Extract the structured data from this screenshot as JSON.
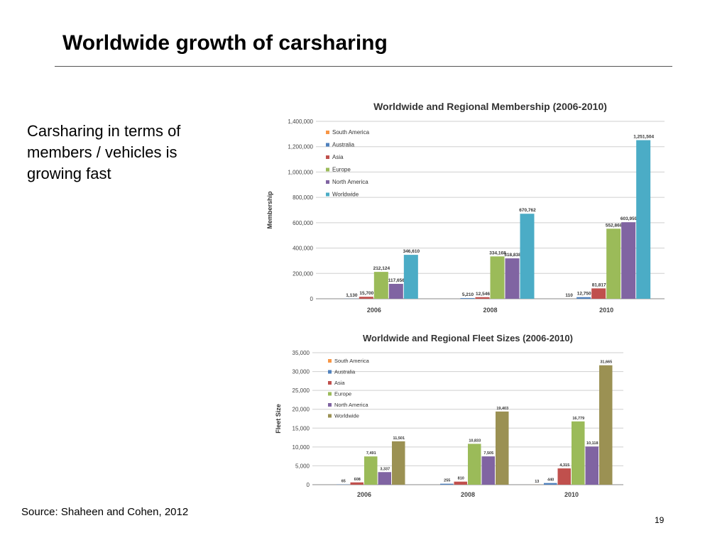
{
  "slide": {
    "title": "Worldwide growth of carsharing",
    "body": "Carsharing in terms of members / vehicles is growing fast",
    "source": "Source: Shaheen and Cohen, 2012",
    "page_number": "19"
  },
  "chart_data": [
    {
      "type": "bar",
      "title": "Worldwide and Regional Membership (2006-2010)",
      "xlabel": "",
      "ylabel": "Membership",
      "categories": [
        "2006",
        "2008",
        "2010"
      ],
      "ylim": [
        0,
        1400000
      ],
      "yticks": [
        0,
        200000,
        400000,
        600000,
        800000,
        1000000,
        1200000,
        1400000
      ],
      "ytick_labels": [
        "0",
        "200,000",
        "400,000",
        "600,000",
        "800,000",
        "1,000,000",
        "1,200,000",
        "1,400,000"
      ],
      "legend_position": "top-left",
      "grid": true,
      "series": [
        {
          "name": "South America",
          "color": "#F79646",
          "values": [
            0,
            0,
            110
          ],
          "labels": [
            "",
            "",
            "110"
          ]
        },
        {
          "name": "Australia",
          "color": "#4F81BD",
          "values": [
            1130,
            5210,
            12750
          ],
          "labels": [
            "1,130",
            "5,210",
            "12,750"
          ]
        },
        {
          "name": "Asia",
          "color": "#C0504D",
          "values": [
            15700,
            12546,
            81817
          ],
          "labels": [
            "15,700",
            "12,546",
            "81,817"
          ]
        },
        {
          "name": "Europe",
          "color": "#9BBB59",
          "values": [
            212124,
            334168,
            552868
          ],
          "labels": [
            "212,124",
            "334,168",
            "552,868"
          ]
        },
        {
          "name": "North America",
          "color": "#8064A2",
          "values": [
            117656,
            318838,
            603959
          ],
          "labels": [
            "117,656",
            "318,838",
            "603,959"
          ]
        },
        {
          "name": "Worldwide",
          "color": "#4BACC6",
          "values": [
            346610,
            670762,
            1251504
          ],
          "labels": [
            "346,610",
            "670,762",
            "1,251,504"
          ]
        }
      ]
    },
    {
      "type": "bar",
      "title": "Worldwide and Regional Fleet Sizes (2006-2010)",
      "xlabel": "",
      "ylabel": "Fleet Size",
      "categories": [
        "2006",
        "2008",
        "2010"
      ],
      "ylim": [
        0,
        35000
      ],
      "yticks": [
        0,
        5000,
        10000,
        15000,
        20000,
        25000,
        30000,
        35000
      ],
      "ytick_labels": [
        "0",
        "5,000",
        "10,000",
        "15,000",
        "20,000",
        "25,000",
        "30,000",
        "35,000"
      ],
      "legend_position": "top-left",
      "grid": true,
      "series": [
        {
          "name": "South America",
          "color": "#F79646",
          "values": [
            0,
            0,
            13
          ],
          "labels": [
            "",
            "",
            "13"
          ]
        },
        {
          "name": "Australia",
          "color": "#4F81BD",
          "values": [
            65,
            255,
            440
          ],
          "labels": [
            "65",
            "255",
            "440"
          ]
        },
        {
          "name": "Asia",
          "color": "#C0504D",
          "values": [
            608,
            810,
            4315
          ],
          "labels": [
            "608",
            "810",
            "4,315"
          ]
        },
        {
          "name": "Europe",
          "color": "#9BBB59",
          "values": [
            7491,
            10833,
            16779
          ],
          "labels": [
            "7,491",
            "10,833",
            "16,779"
          ]
        },
        {
          "name": "North America",
          "color": "#8064A2",
          "values": [
            3337,
            7505,
            10118
          ],
          "labels": [
            "3,337",
            "7,505",
            "10,118"
          ]
        },
        {
          "name": "Worldwide",
          "color": "#9B9153",
          "values": [
            11501,
            19403,
            31665
          ],
          "labels": [
            "11,501",
            "19,403",
            "31,665"
          ]
        }
      ]
    }
  ]
}
